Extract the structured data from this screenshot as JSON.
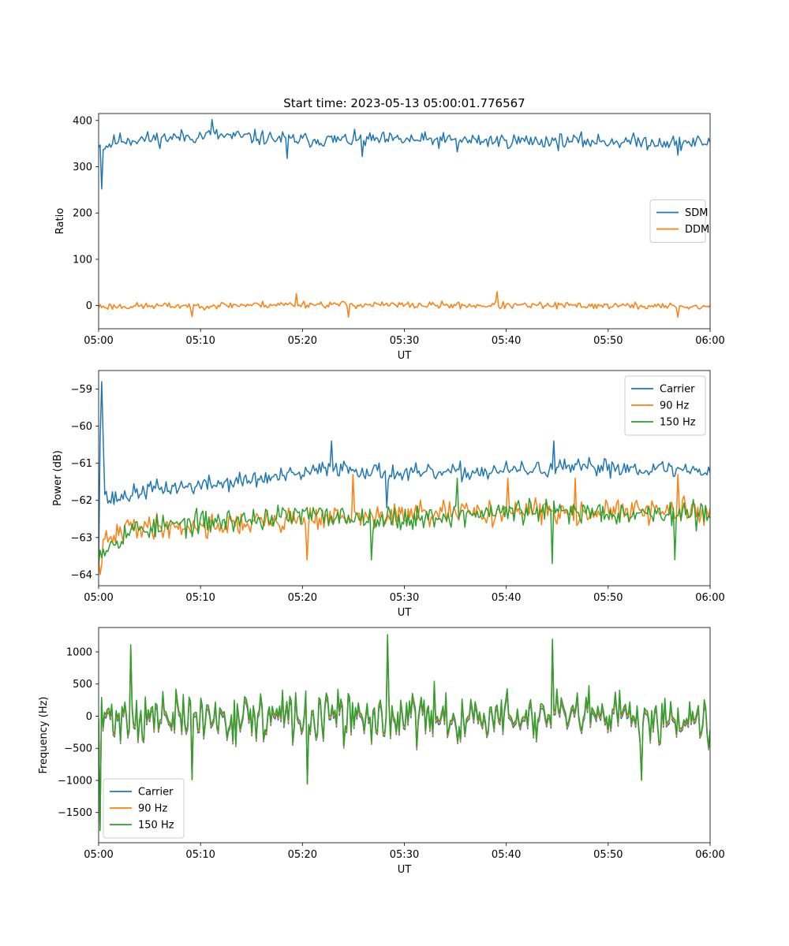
{
  "figure": {
    "title": "Start time: 2023-05-13 05:00:01.776567"
  },
  "colors": {
    "blue": "#1f77b4",
    "orange": "#ff7f0e",
    "green": "#2ca02c"
  },
  "chart_data": [
    {
      "type": "line",
      "title": "Start time: 2023-05-13 05:00:01.776567",
      "xlabel": "UT",
      "ylabel": "Ratio",
      "x_range": [
        "05:00",
        "06:00"
      ],
      "xlim": [
        0,
        60
      ],
      "xticks": [
        {
          "value": 0,
          "label": "05:00"
        },
        {
          "value": 10,
          "label": "05:10"
        },
        {
          "value": 20,
          "label": "05:20"
        },
        {
          "value": 30,
          "label": "05:30"
        },
        {
          "value": 40,
          "label": "05:40"
        },
        {
          "value": 50,
          "label": "05:50"
        },
        {
          "value": 60,
          "label": "06:00"
        }
      ],
      "ylim": [
        -50,
        415
      ],
      "yticks": [
        0,
        100,
        200,
        300,
        400
      ],
      "legend": "center-right",
      "grid": false,
      "series": [
        {
          "name": "SDM",
          "color": "#1f77b4",
          "points": 400,
          "noise": 15,
          "seed": 11,
          "profile": [
            [
              0,
              352
            ],
            [
              0.15,
              345
            ],
            [
              0.25,
              255
            ],
            [
              0.4,
              340
            ],
            [
              1,
              348
            ],
            [
              2,
              358
            ],
            [
              5,
              360
            ],
            [
              11,
              368
            ],
            [
              20,
              358
            ],
            [
              30,
              358
            ],
            [
              40,
              356
            ],
            [
              50,
              355
            ],
            [
              60,
              352
            ]
          ],
          "spikes": [
            [
              0.25,
              252
            ],
            [
              11.1,
              402
            ],
            [
              18.5,
              318
            ],
            [
              25.8,
              322
            ],
            [
              35.2,
              332
            ],
            [
              56.8,
              325
            ]
          ]
        },
        {
          "name": "DDM",
          "color": "#ff7f0e",
          "points": 400,
          "noise": 7,
          "seed": 23,
          "profile": [
            [
              0,
              -2
            ],
            [
              10,
              0
            ],
            [
              20,
              3
            ],
            [
              30,
              1
            ],
            [
              40,
              0
            ],
            [
              50,
              0
            ],
            [
              60,
              -3
            ]
          ],
          "spikes": [
            [
              19.4,
              26
            ],
            [
              39.1,
              30
            ],
            [
              24.5,
              -25
            ],
            [
              56.8,
              -25
            ],
            [
              9.1,
              -24
            ]
          ]
        }
      ]
    },
    {
      "type": "line",
      "title": "",
      "xlabel": "UT",
      "ylabel": "Power (dB)",
      "x_range": [
        "05:00",
        "06:00"
      ],
      "xlim": [
        0,
        60
      ],
      "xticks": [
        {
          "value": 0,
          "label": "05:00"
        },
        {
          "value": 10,
          "label": "05:10"
        },
        {
          "value": 20,
          "label": "05:20"
        },
        {
          "value": 30,
          "label": "05:30"
        },
        {
          "value": 40,
          "label": "05:40"
        },
        {
          "value": 50,
          "label": "05:50"
        },
        {
          "value": 60,
          "label": "06:00"
        }
      ],
      "ylim": [
        -64.3,
        -58.5
      ],
      "yticks": [
        -64,
        -63,
        -62,
        -61,
        -60,
        -59
      ],
      "legend": "top-right",
      "grid": false,
      "series": [
        {
          "name": "Carrier",
          "color": "#1f77b4",
          "points": 400,
          "noise": 0.22,
          "seed": 37,
          "profile": [
            [
              0,
              -63.6
            ],
            [
              0.1,
              -60.5
            ],
            [
              0.3,
              -58.8
            ],
            [
              0.6,
              -61.8
            ],
            [
              1,
              -62.0
            ],
            [
              5,
              -61.7
            ],
            [
              10,
              -61.6
            ],
            [
              20,
              -61.3
            ],
            [
              23,
              -61.1
            ],
            [
              30,
              -61.3
            ],
            [
              40,
              -61.2
            ],
            [
              50,
              -61.1
            ],
            [
              60,
              -61.2
            ]
          ],
          "spikes": [
            [
              0.3,
              -58.8
            ],
            [
              22.8,
              -60.4
            ],
            [
              44.7,
              -60.4
            ],
            [
              49.8,
              -60.9
            ],
            [
              28.3,
              -62.2
            ]
          ]
        },
        {
          "name": "90 Hz",
          "color": "#ff7f0e",
          "points": 400,
          "noise": 0.3,
          "seed": 41,
          "profile": [
            [
              0,
              -63.8
            ],
            [
              0.5,
              -63.2
            ],
            [
              3,
              -62.7
            ],
            [
              10,
              -62.7
            ],
            [
              20,
              -62.5
            ],
            [
              30,
              -62.4
            ],
            [
              40,
              -62.3
            ],
            [
              50,
              -62.3
            ],
            [
              60,
              -62.3
            ]
          ],
          "spikes": [
            [
              0.2,
              -64.0
            ],
            [
              20.4,
              -63.6
            ],
            [
              25.0,
              -61.3
            ],
            [
              40.2,
              -61.4
            ],
            [
              46.8,
              -61.4
            ],
            [
              56.8,
              -61.3
            ]
          ]
        },
        {
          "name": "150 Hz",
          "color": "#2ca02c",
          "points": 400,
          "noise": 0.3,
          "seed": 53,
          "profile": [
            [
              0,
              -63.4
            ],
            [
              3,
              -62.8
            ],
            [
              10,
              -62.6
            ],
            [
              20,
              -62.4
            ],
            [
              30,
              -62.5
            ],
            [
              40,
              -62.3
            ],
            [
              50,
              -62.3
            ],
            [
              60,
              -62.4
            ]
          ],
          "spikes": [
            [
              26.8,
              -63.6
            ],
            [
              44.5,
              -63.7
            ],
            [
              56.6,
              -63.6
            ],
            [
              35.2,
              -61.4
            ]
          ]
        }
      ]
    },
    {
      "type": "line",
      "title": "",
      "xlabel": "UT",
      "ylabel": "Frequency (Hz)",
      "x_range": [
        "05:00",
        "06:00"
      ],
      "xlim": [
        0,
        60
      ],
      "xticks": [
        {
          "value": 0,
          "label": "05:00"
        },
        {
          "value": 10,
          "label": "05:10"
        },
        {
          "value": 20,
          "label": "05:20"
        },
        {
          "value": 30,
          "label": "05:30"
        },
        {
          "value": 40,
          "label": "05:40"
        },
        {
          "value": 50,
          "label": "05:50"
        },
        {
          "value": 60,
          "label": "06:00"
        }
      ],
      "ylim": [
        -1970,
        1380
      ],
      "yticks": [
        -1500,
        -1000,
        -500,
        0,
        500,
        1000
      ],
      "legend": "bottom-left",
      "grid": false,
      "series": [
        {
          "name": "Carrier",
          "color": "#1f77b4",
          "offset": -60,
          "scale": 0.95
        },
        {
          "name": "90 Hz",
          "color": "#ff7f0e",
          "offset": -30,
          "scale": 0.98
        },
        {
          "name": "150 Hz",
          "color": "#2ca02c",
          "offset": 0,
          "scale": 1.0
        }
      ],
      "shared_signal": {
        "points": 420,
        "noise": 360,
        "seed": 71,
        "profile": [
          [
            0,
            0
          ],
          [
            60,
            0
          ]
        ],
        "spikes": [
          [
            0.2,
            -1780
          ],
          [
            3.2,
            1110
          ],
          [
            28.3,
            1270
          ],
          [
            44.6,
            1200
          ],
          [
            20.5,
            -1050
          ],
          [
            9.2,
            -980
          ],
          [
            53.3,
            -990
          ]
        ]
      }
    }
  ]
}
